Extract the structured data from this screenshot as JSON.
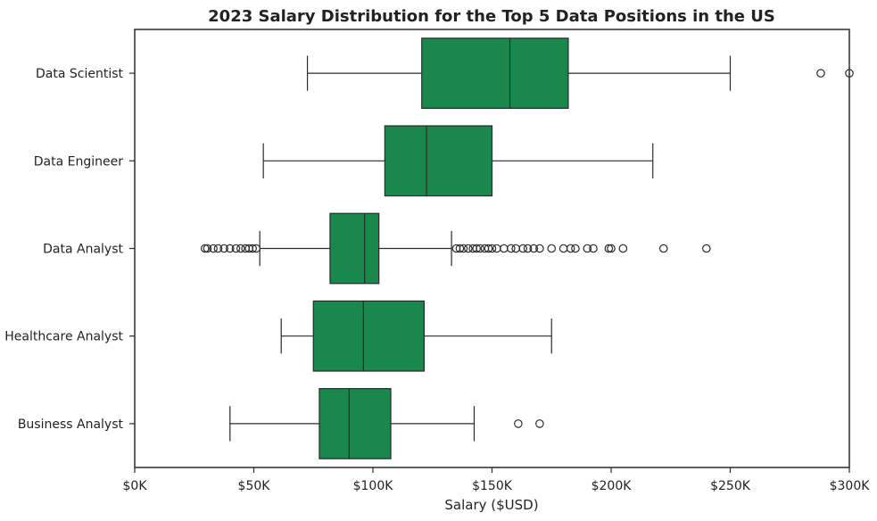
{
  "chart_data": {
    "type": "boxplot",
    "title": "2023 Salary Distribution for the Top 5 Data Positions in the US",
    "xlabel": "Salary ($USD)",
    "ylabel": "",
    "xlim": [
      0,
      300000
    ],
    "x_ticks": [
      0,
      50000,
      100000,
      150000,
      200000,
      250000,
      300000
    ],
    "x_tick_labels": [
      "$0K",
      "$50K",
      "$100K",
      "$150K",
      "$200K",
      "$250K",
      "$300K"
    ],
    "orientation": "horizontal",
    "box_color": "#18884d",
    "edge_color": "#2b2b2b",
    "grid": false,
    "categories": [
      "Data Scientist",
      "Data Engineer",
      "Data Analyst",
      "Healthcare Analyst",
      "Business Analyst"
    ],
    "boxes": [
      {
        "label": "Data Scientist",
        "whisker_low": 72500,
        "q1": 120500,
        "median": 157500,
        "q3": 182000,
        "whisker_high": 250000,
        "outliers": [
          288000,
          300000
        ]
      },
      {
        "label": "Data Engineer",
        "whisker_low": 54000,
        "q1": 105000,
        "median": 122500,
        "q3": 150000,
        "whisker_high": 217500,
        "outliers": []
      },
      {
        "label": "Data Analyst",
        "whisker_low": 52500,
        "q1": 82000,
        "median": 96500,
        "q3": 102500,
        "whisker_high": 133000,
        "outliers": [
          29500,
          30500,
          33000,
          35000,
          37500,
          40000,
          42500,
          44500,
          46500,
          48000,
          49500,
          51000,
          135000,
          136500,
          138000,
          140000,
          142000,
          143500,
          145000,
          147000,
          148500,
          150000,
          152000,
          155000,
          158000,
          160000,
          163000,
          165000,
          167500,
          170000,
          175000,
          180000,
          183000,
          185000,
          190000,
          192500,
          199000,
          200000,
          205000,
          222000,
          240000
        ]
      },
      {
        "label": "Healthcare Analyst",
        "whisker_low": 61500,
        "q1": 75000,
        "median": 96000,
        "q3": 121500,
        "whisker_high": 175000,
        "outliers": []
      },
      {
        "label": "Business Analyst",
        "whisker_low": 40000,
        "q1": 77500,
        "median": 90000,
        "q3": 107500,
        "whisker_high": 142500,
        "outliers": [
          161000,
          170000
        ]
      }
    ]
  }
}
